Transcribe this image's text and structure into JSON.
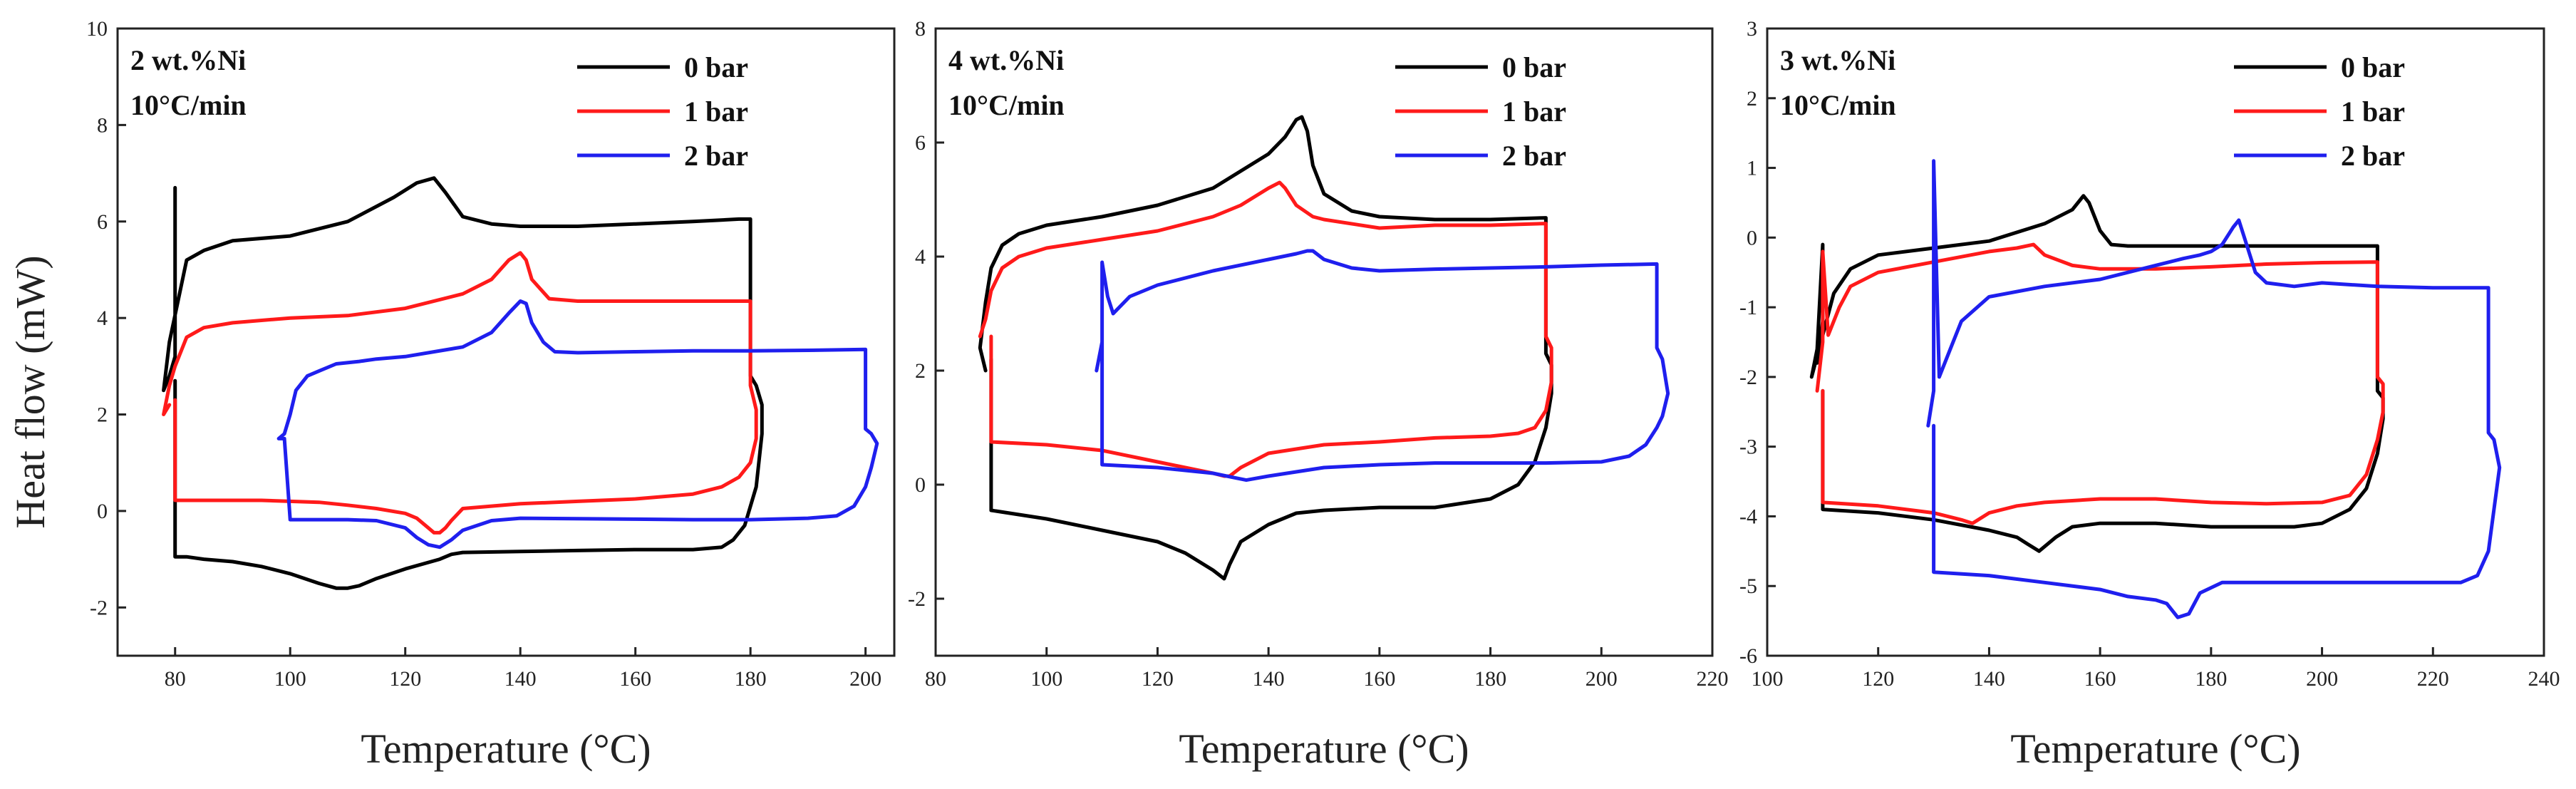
{
  "figure": {
    "ylabel": "Heat flow (mW)",
    "colors": {
      "0 bar": "#000000",
      "1 bar": "#ff1a1a",
      "2 bar": "#1f1fee"
    }
  },
  "chart_data": [
    {
      "type": "line",
      "annotation": [
        "2 wt.%Ni",
        "10°C/min"
      ],
      "xlabel": "Temperature (°C)",
      "ylabel": "Heat flow (mW)",
      "xlim": [
        70,
        205
      ],
      "ylim": [
        -3,
        10
      ],
      "xticks": [
        80,
        100,
        120,
        140,
        160,
        180,
        200
      ],
      "yticks": [
        -2,
        0,
        2,
        4,
        6,
        8,
        10
      ],
      "legend": [
        "0 bar",
        "1 bar",
        "2 bar"
      ],
      "series": [
        {
          "name": "0 bar",
          "color": "#000000",
          "x": [
            80,
            80,
            80,
            79,
            78,
            79,
            82,
            85,
            90,
            100,
            110,
            118,
            122,
            125,
            127,
            130,
            135,
            140,
            150,
            160,
            170,
            178,
            180,
            180,
            181,
            182,
            182,
            181,
            179,
            177,
            175,
            170,
            160,
            150,
            140,
            130,
            128,
            126,
            120,
            115,
            112,
            110,
            108,
            105,
            100,
            95,
            90,
            85,
            82,
            80,
            80
          ],
          "y": [
            6.7,
            4.8,
            3.2,
            2.8,
            2.5,
            3.5,
            5.2,
            5.4,
            5.6,
            5.7,
            6.0,
            6.5,
            6.8,
            6.9,
            6.6,
            6.1,
            5.95,
            5.9,
            5.9,
            5.95,
            6.0,
            6.05,
            6.05,
            2.8,
            2.6,
            2.2,
            1.6,
            0.5,
            -0.3,
            -0.6,
            -0.75,
            -0.8,
            -0.8,
            -0.82,
            -0.84,
            -0.86,
            -0.9,
            -1.0,
            -1.2,
            -1.4,
            -1.55,
            -1.6,
            -1.6,
            -1.5,
            -1.3,
            -1.15,
            -1.05,
            -1.0,
            -0.95,
            -0.95,
            2.7
          ]
        },
        {
          "name": "1 bar",
          "color": "#ff1a1a",
          "x": [
            79,
            78,
            79,
            80,
            82,
            85,
            90,
            100,
            110,
            120,
            130,
            135,
            138,
            140,
            141,
            142,
            145,
            150,
            160,
            170,
            180,
            180,
            181,
            181,
            180,
            178,
            175,
            170,
            160,
            150,
            140,
            130,
            128,
            127,
            126,
            125,
            124,
            122,
            120,
            115,
            110,
            105,
            100,
            95,
            90,
            85,
            80,
            80
          ],
          "y": [
            2.2,
            2.0,
            2.6,
            3.0,
            3.6,
            3.8,
            3.9,
            4.0,
            4.05,
            4.2,
            4.5,
            4.8,
            5.2,
            5.35,
            5.2,
            4.8,
            4.4,
            4.35,
            4.35,
            4.35,
            4.35,
            2.6,
            2.1,
            1.5,
            1.0,
            0.7,
            0.5,
            0.35,
            0.25,
            0.2,
            0.15,
            0.05,
            -0.2,
            -0.35,
            -0.45,
            -0.45,
            -0.35,
            -0.15,
            -0.05,
            0.05,
            0.12,
            0.18,
            0.2,
            0.22,
            0.22,
            0.22,
            0.22,
            2.3
          ]
        },
        {
          "name": "2 bar",
          "color": "#1f1fee",
          "x": [
            98,
            99,
            100,
            101,
            103,
            105,
            108,
            112,
            115,
            120,
            130,
            135,
            138,
            140,
            141,
            142,
            144,
            146,
            150,
            160,
            170,
            180,
            190,
            200,
            200,
            201,
            202,
            201,
            200,
            198,
            195,
            190,
            180,
            170,
            160,
            150,
            140,
            135,
            130,
            128,
            126,
            124,
            122,
            120,
            115,
            110,
            105,
            100,
            99,
            98
          ],
          "y": [
            1.5,
            1.6,
            2.0,
            2.5,
            2.8,
            2.9,
            3.05,
            3.1,
            3.15,
            3.2,
            3.4,
            3.7,
            4.1,
            4.35,
            4.3,
            3.9,
            3.5,
            3.3,
            3.28,
            3.3,
            3.32,
            3.32,
            3.33,
            3.35,
            1.7,
            1.6,
            1.4,
            0.9,
            0.5,
            0.1,
            -0.1,
            -0.15,
            -0.18,
            -0.18,
            -0.17,
            -0.16,
            -0.15,
            -0.2,
            -0.4,
            -0.6,
            -0.75,
            -0.7,
            -0.55,
            -0.35,
            -0.2,
            -0.18,
            -0.18,
            -0.18,
            1.5,
            1.5
          ]
        }
      ]
    },
    {
      "type": "line",
      "annotation": [
        "4 wt.%Ni",
        "10°C/min"
      ],
      "xlabel": "Temperature (°C)",
      "ylabel": "",
      "xlim": [
        80,
        220
      ],
      "ylim": [
        -3,
        8
      ],
      "xticks": [
        80,
        100,
        120,
        140,
        160,
        180,
        200,
        220
      ],
      "yticks": [
        -2,
        0,
        2,
        4,
        6,
        8
      ],
      "legend": [
        "0 bar",
        "1 bar",
        "2 bar"
      ],
      "series": [
        {
          "name": "0 bar",
          "color": "#000000",
          "x": [
            89,
            88,
            89,
            90,
            92,
            95,
            100,
            110,
            120,
            130,
            135,
            140,
            143,
            145,
            146,
            147,
            148,
            150,
            155,
            160,
            170,
            180,
            190,
            190,
            191,
            191,
            190,
            188,
            185,
            180,
            170,
            160,
            150,
            145,
            140,
            135,
            133,
            132,
            130,
            125,
            120,
            110,
            100,
            90,
            90
          ],
          "y": [
            2.0,
            2.4,
            3.2,
            3.8,
            4.2,
            4.4,
            4.55,
            4.7,
            4.9,
            5.2,
            5.5,
            5.8,
            6.1,
            6.4,
            6.45,
            6.2,
            5.6,
            5.1,
            4.8,
            4.7,
            4.65,
            4.65,
            4.68,
            2.3,
            2.1,
            1.6,
            1.0,
            0.4,
            0.0,
            -0.25,
            -0.4,
            -0.4,
            -0.45,
            -0.5,
            -0.7,
            -1.0,
            -1.4,
            -1.65,
            -1.5,
            -1.2,
            -1.0,
            -0.8,
            -0.6,
            -0.45,
            2.2
          ]
        },
        {
          "name": "1 bar",
          "color": "#ff1a1a",
          "x": [
            88,
            89,
            90,
            92,
            95,
            100,
            110,
            120,
            130,
            135,
            140,
            142,
            143,
            145,
            148,
            150,
            160,
            170,
            180,
            190,
            190,
            191,
            191,
            190,
            188,
            185,
            180,
            170,
            160,
            150,
            140,
            135,
            133,
            132,
            130,
            120,
            110,
            100,
            90,
            90
          ],
          "y": [
            2.6,
            2.9,
            3.4,
            3.8,
            4.0,
            4.15,
            4.3,
            4.45,
            4.7,
            4.9,
            5.2,
            5.3,
            5.2,
            4.9,
            4.7,
            4.65,
            4.5,
            4.55,
            4.55,
            4.58,
            2.6,
            2.4,
            1.8,
            1.3,
            1.0,
            0.9,
            0.85,
            0.82,
            0.75,
            0.7,
            0.55,
            0.3,
            0.15,
            0.15,
            0.2,
            0.4,
            0.6,
            0.7,
            0.75,
            2.6
          ]
        },
        {
          "name": "2 bar",
          "color": "#1f1fee",
          "x": [
            109,
            110,
            110,
            111,
            112,
            115,
            120,
            130,
            140,
            145,
            147,
            148,
            150,
            155,
            160,
            170,
            180,
            190,
            200,
            210,
            210,
            211,
            212,
            211,
            210,
            208,
            205,
            200,
            190,
            180,
            170,
            160,
            150,
            140,
            136,
            134,
            130,
            120,
            110,
            110
          ],
          "y": [
            2.0,
            2.5,
            3.9,
            3.3,
            3.0,
            3.3,
            3.5,
            3.75,
            3.95,
            4.05,
            4.1,
            4.1,
            3.95,
            3.8,
            3.75,
            3.78,
            3.8,
            3.82,
            3.85,
            3.87,
            2.4,
            2.2,
            1.6,
            1.2,
            1.0,
            0.7,
            0.5,
            0.4,
            0.38,
            0.38,
            0.38,
            0.35,
            0.3,
            0.15,
            0.08,
            0.12,
            0.2,
            0.3,
            0.35,
            2.5
          ]
        }
      ]
    },
    {
      "type": "line",
      "annotation": [
        "3 wt.%Ni",
        "10°C/min"
      ],
      "xlabel": "Temperature (°C)",
      "ylabel": "",
      "xlim": [
        100,
        240
      ],
      "ylim": [
        -6,
        3
      ],
      "xticks": [
        100,
        120,
        140,
        160,
        180,
        200,
        220,
        240
      ],
      "yticks": [
        -6,
        -5,
        -4,
        -3,
        -2,
        -1,
        0,
        1,
        2,
        3
      ],
      "legend": [
        "0 bar",
        "1 bar",
        "2 bar"
      ],
      "series": [
        {
          "name": "0 bar",
          "color": "#000000",
          "x": [
            109,
            110,
            110,
            109,
            108,
            110,
            112,
            115,
            120,
            130,
            140,
            150,
            155,
            157,
            158,
            160,
            162,
            165,
            170,
            180,
            190,
            200,
            210,
            210,
            211,
            211,
            210,
            208,
            205,
            200,
            195,
            190,
            180,
            170,
            160,
            155,
            152,
            149,
            147,
            145,
            140,
            130,
            120,
            110,
            110
          ],
          "y": [
            -1.8,
            -1.2,
            -0.1,
            -1.6,
            -2.0,
            -1.4,
            -0.8,
            -0.45,
            -0.25,
            -0.15,
            -0.05,
            0.2,
            0.4,
            0.6,
            0.5,
            0.1,
            -0.1,
            -0.12,
            -0.12,
            -0.12,
            -0.12,
            -0.12,
            -0.12,
            -2.2,
            -2.3,
            -2.6,
            -3.1,
            -3.6,
            -3.9,
            -4.1,
            -4.15,
            -4.15,
            -4.15,
            -4.1,
            -4.1,
            -4.15,
            -4.3,
            -4.5,
            -4.4,
            -4.3,
            -4.2,
            -4.05,
            -3.95,
            -3.9,
            -2.2
          ]
        },
        {
          "name": "1 bar",
          "color": "#ff1a1a",
          "x": [
            109,
            110,
            110,
            111,
            113,
            115,
            120,
            130,
            140,
            145,
            148,
            150,
            155,
            160,
            170,
            180,
            190,
            200,
            210,
            210,
            211,
            211,
            210,
            208,
            205,
            200,
            190,
            180,
            170,
            160,
            150,
            145,
            140,
            137,
            135,
            130,
            120,
            110,
            110
          ],
          "y": [
            -2.2,
            -1.5,
            -0.2,
            -1.4,
            -1.0,
            -0.7,
            -0.5,
            -0.35,
            -0.2,
            -0.15,
            -0.1,
            -0.25,
            -0.4,
            -0.45,
            -0.45,
            -0.42,
            -0.38,
            -0.36,
            -0.35,
            -2.0,
            -2.1,
            -2.5,
            -2.9,
            -3.4,
            -3.7,
            -3.8,
            -3.82,
            -3.8,
            -3.75,
            -3.75,
            -3.8,
            -3.85,
            -3.95,
            -4.1,
            -4.05,
            -3.95,
            -3.85,
            -3.8,
            -2.2
          ]
        },
        {
          "name": "2 bar",
          "color": "#1f1fee",
          "x": [
            129,
            130,
            130,
            131,
            133,
            135,
            140,
            150,
            160,
            165,
            170,
            175,
            178,
            180,
            182,
            184,
            185,
            186,
            188,
            190,
            195,
            200,
            210,
            220,
            230,
            230,
            231,
            232,
            231,
            230,
            228,
            225,
            220,
            210,
            200,
            190,
            182,
            178,
            176,
            174,
            172,
            170,
            165,
            160,
            150,
            140,
            130,
            130
          ],
          "y": [
            -2.7,
            -2.2,
            1.1,
            -2.0,
            -1.6,
            -1.2,
            -0.85,
            -0.7,
            -0.6,
            -0.5,
            -0.4,
            -0.3,
            -0.25,
            -0.2,
            -0.1,
            0.15,
            0.25,
            0.0,
            -0.5,
            -0.65,
            -0.7,
            -0.65,
            -0.7,
            -0.72,
            -0.72,
            -2.8,
            -2.9,
            -3.3,
            -3.9,
            -4.5,
            -4.85,
            -4.95,
            -4.95,
            -4.95,
            -4.95,
            -4.95,
            -4.95,
            -5.1,
            -5.4,
            -5.45,
            -5.25,
            -5.2,
            -5.15,
            -5.05,
            -4.95,
            -4.85,
            -4.8,
            -2.7
          ]
        }
      ]
    }
  ]
}
